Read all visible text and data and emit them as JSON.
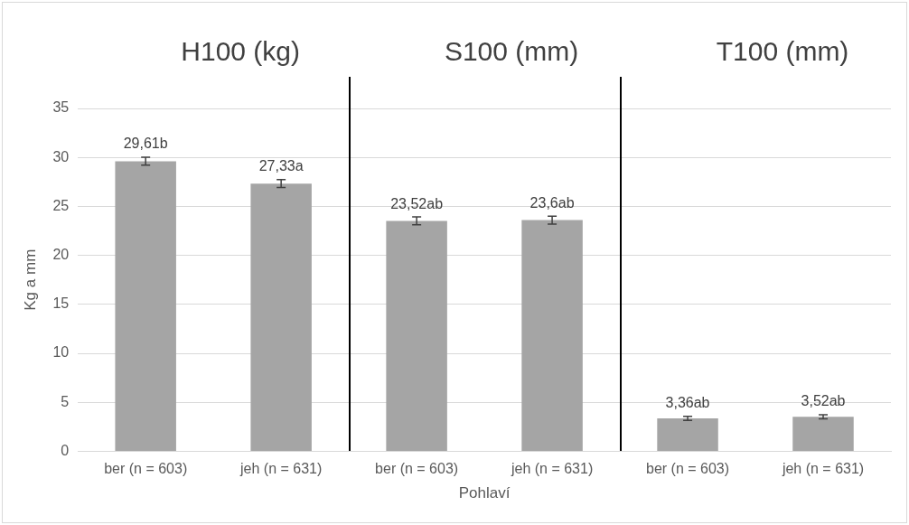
{
  "chart_data": {
    "type": "bar",
    "xlabel": "Pohlaví",
    "ylabel": "Kg a mm",
    "annotations": [
      "H100 (kg)",
      "S100 (mm)",
      "T100 (mm)"
    ],
    "categories": [
      "ber (n = 603)",
      "jeh (n = 631)",
      "ber (n = 603)",
      "jeh (n = 631)",
      "ber (n = 603)",
      "jeh (n = 631)"
    ],
    "values": [
      29.61,
      27.33,
      23.52,
      23.6,
      3.36,
      3.52
    ],
    "errors": [
      0.4,
      0.4,
      0.4,
      0.4,
      0.2,
      0.2
    ],
    "value_labels": [
      "29,61b",
      "27,33a",
      "23,52ab",
      "23,6ab",
      "3,36ab",
      "3,52ab"
    ],
    "color": "#a5a5a5",
    "ylim": [
      0,
      35
    ],
    "yticks": [
      0,
      5,
      10,
      15,
      20,
      25,
      30,
      35
    ],
    "grid": "y",
    "legend": false
  }
}
